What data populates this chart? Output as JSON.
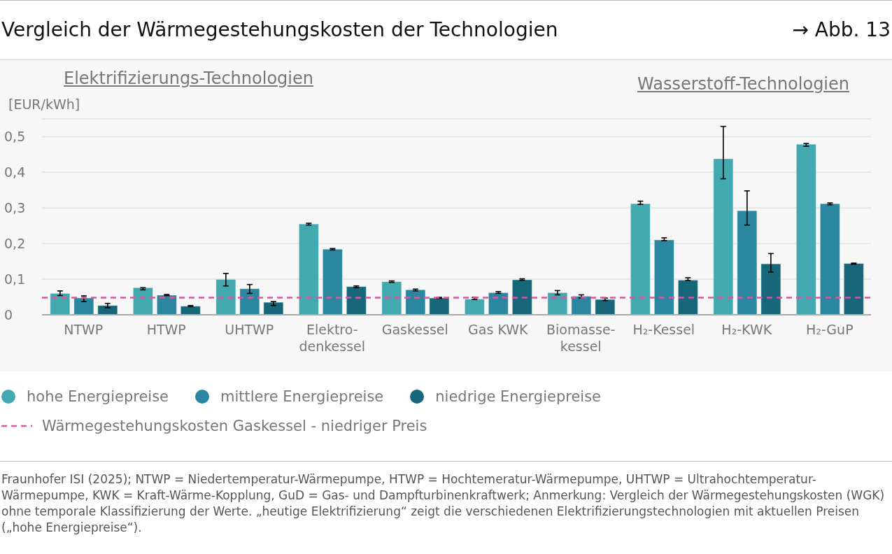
{
  "chart_data": {
    "type": "bar",
    "title": "Vergleich der Wärmegestehungskosten der Technologien",
    "ylabel": "[EUR/kWh]",
    "categories": [
      "NTWP",
      "HTWP",
      "UHTWP",
      "Elektro-\ndenkessel",
      "Gaskessel",
      "Gas KWK",
      "Biomasse-\nkessel",
      "H₂-Kessel",
      "H₂-KWK",
      "H₂-GuP"
    ],
    "series": [
      {
        "name": "hohe Energiepreise",
        "color": "#42a9b0",
        "values": [
          0.06,
          0.076,
          0.099,
          0.255,
          0.093,
          0.044,
          0.062,
          0.312,
          0.438,
          0.479
        ],
        "errors": [
          [
            0.054,
            0.067
          ],
          [
            0.07,
            0.076
          ],
          [
            0.081,
            0.116
          ],
          [
            0.252,
            0.257
          ],
          [
            0.091,
            0.095
          ],
          [
            0.043,
            0.049
          ],
          [
            0.056,
            0.068
          ],
          [
            0.31,
            0.319
          ],
          [
            0.382,
            0.529
          ],
          [
            0.473,
            0.481
          ]
        ]
      },
      {
        "name": "mittlere Energiepreise",
        "color": "#2b87a0",
        "values": [
          0.047,
          0.055,
          0.073,
          0.184,
          0.07,
          0.062,
          0.052,
          0.21,
          0.292,
          0.312
        ],
        "errors": [
          [
            0.037,
            0.053
          ],
          [
            0.054,
            0.057
          ],
          [
            0.06,
            0.085
          ],
          [
            0.182,
            0.186
          ],
          [
            0.067,
            0.072
          ],
          [
            0.06,
            0.065
          ],
          [
            0.047,
            0.056
          ],
          [
            0.208,
            0.216
          ],
          [
            0.252,
            0.348
          ],
          [
            0.309,
            0.314
          ]
        ]
      },
      {
        "name": "niedrige Energiepreise",
        "color": "#17677a",
        "values": [
          0.026,
          0.024,
          0.035,
          0.079,
          0.047,
          0.098,
          0.043,
          0.097,
          0.143,
          0.144
        ],
        "errors": [
          [
            0.02,
            0.032
          ],
          [
            0.023,
            0.026
          ],
          [
            0.026,
            0.037
          ],
          [
            0.076,
            0.081
          ],
          [
            0.046,
            0.049
          ],
          [
            0.097,
            0.101
          ],
          [
            0.04,
            0.047
          ],
          [
            0.096,
            0.104
          ],
          [
            0.12,
            0.172
          ],
          [
            0.142,
            0.145
          ]
        ]
      }
    ],
    "ylim": [
      0,
      0.55
    ],
    "yticks": [
      {
        "value": 0,
        "label": "0"
      },
      {
        "value": 0.1,
        "label": "0,1"
      },
      {
        "value": 0.2,
        "label": "0,2"
      },
      {
        "value": 0.3,
        "label": "0,3"
      },
      {
        "value": 0.4,
        "label": "0,4"
      },
      {
        "value": 0.5,
        "label": "0,5"
      }
    ],
    "grid": "y",
    "legend": "bottom",
    "ref_lines": [
      {
        "axis": "y",
        "value": 0.048,
        "label": "Wärmegestehungskosten Gaskessel - niedriger Preis",
        "color": "#d6589f",
        "line_style": "dashed"
      }
    ],
    "annotations": [
      "Elektrifizierungs-Technologien",
      "Wasserstoff-Technologien",
      "→ Abb. 13",
      "Fraunhofer ISI (2025); NTWP = Niedertemperatur-Wärmepumpe, HTWP = Hochtemeratur-Wärmepumpe, UHTWP = Ultrahochtemperatur-Wärmepumpe, KWK = Kraft-Wärme-Kopplung, GuD = Gas- und Dampfturbinenkraftwerk; Anmerkung: Vergleich der Wärmegestehungskosten (WGK) ohne temporale Klassifizierung der Werte. „heutige Elektrifizierung“ zeigt die verschiedenen Elektrifizierungstechnologien mit aktuellen Preisen („hohe Energiepreise“)."
    ]
  }
}
